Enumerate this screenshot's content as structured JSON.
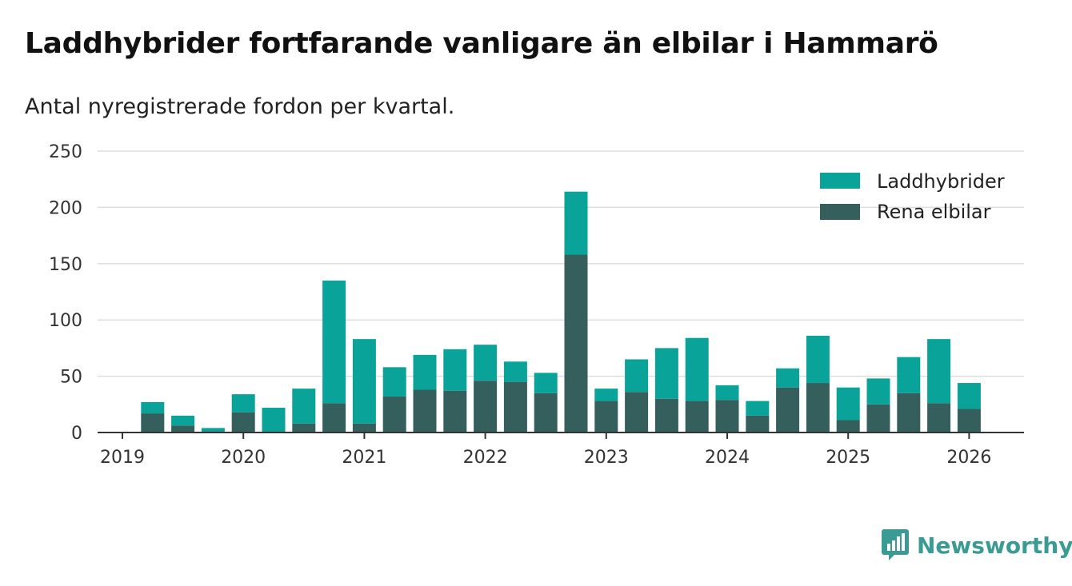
{
  "colors": {
    "phev": "#0aa39a",
    "bev": "#345f5c",
    "grid": "#dddddd",
    "axis": "#333333",
    "brand": "#3a9a94"
  },
  "chart_data": {
    "type": "bar",
    "stacked": true,
    "title": "Laddhybrider fortfarande vanligare än elbilar i Hammarö",
    "subtitle": "Antal nyregistrerade fordon per kvartal.",
    "xlabel": "",
    "ylabel": "",
    "ylim": [
      0,
      250
    ],
    "yticks": [
      "0",
      "50",
      "100",
      "150",
      "200",
      "250"
    ],
    "xticks": [
      "2019",
      "2020",
      "2021",
      "2022",
      "2023",
      "2024",
      "2025",
      "2026"
    ],
    "categories": [
      "2019 Q1",
      "2019 Q2",
      "2019 Q3",
      "2019 Q4",
      "2020 Q1",
      "2020 Q2",
      "2020 Q3",
      "2020 Q4",
      "2021 Q1",
      "2021 Q2",
      "2021 Q3",
      "2021 Q4",
      "2022 Q1",
      "2022 Q2",
      "2022 Q3",
      "2022 Q4",
      "2023 Q1",
      "2023 Q2",
      "2023 Q3",
      "2023 Q4",
      "2024 Q1",
      "2024 Q2",
      "2024 Q3",
      "2024 Q4",
      "2025 Q1",
      "2025 Q2",
      "2025 Q3",
      "2025 Q4",
      "2026 Q1"
    ],
    "series": [
      {
        "name": "Rena elbilar",
        "values": [
          0,
          17,
          6,
          1,
          18,
          1,
          8,
          26,
          8,
          32,
          38,
          37,
          46,
          45,
          35,
          158,
          28,
          36,
          30,
          28,
          29,
          15,
          40,
          44,
          11,
          25,
          35,
          26,
          21
        ]
      },
      {
        "name": "Laddhybrider",
        "values": [
          0,
          10,
          9,
          3,
          16,
          21,
          31,
          109,
          75,
          26,
          31,
          37,
          32,
          18,
          18,
          56,
          11,
          29,
          45,
          56,
          13,
          13,
          17,
          42,
          29,
          23,
          32,
          57,
          23
        ]
      }
    ],
    "legend": {
      "position": "top-right",
      "entries": [
        "Laddhybrider",
        "Rena elbilar"
      ]
    }
  },
  "brand": {
    "name": "Newsworthy",
    "icon": "bar-chart-speech-icon"
  }
}
